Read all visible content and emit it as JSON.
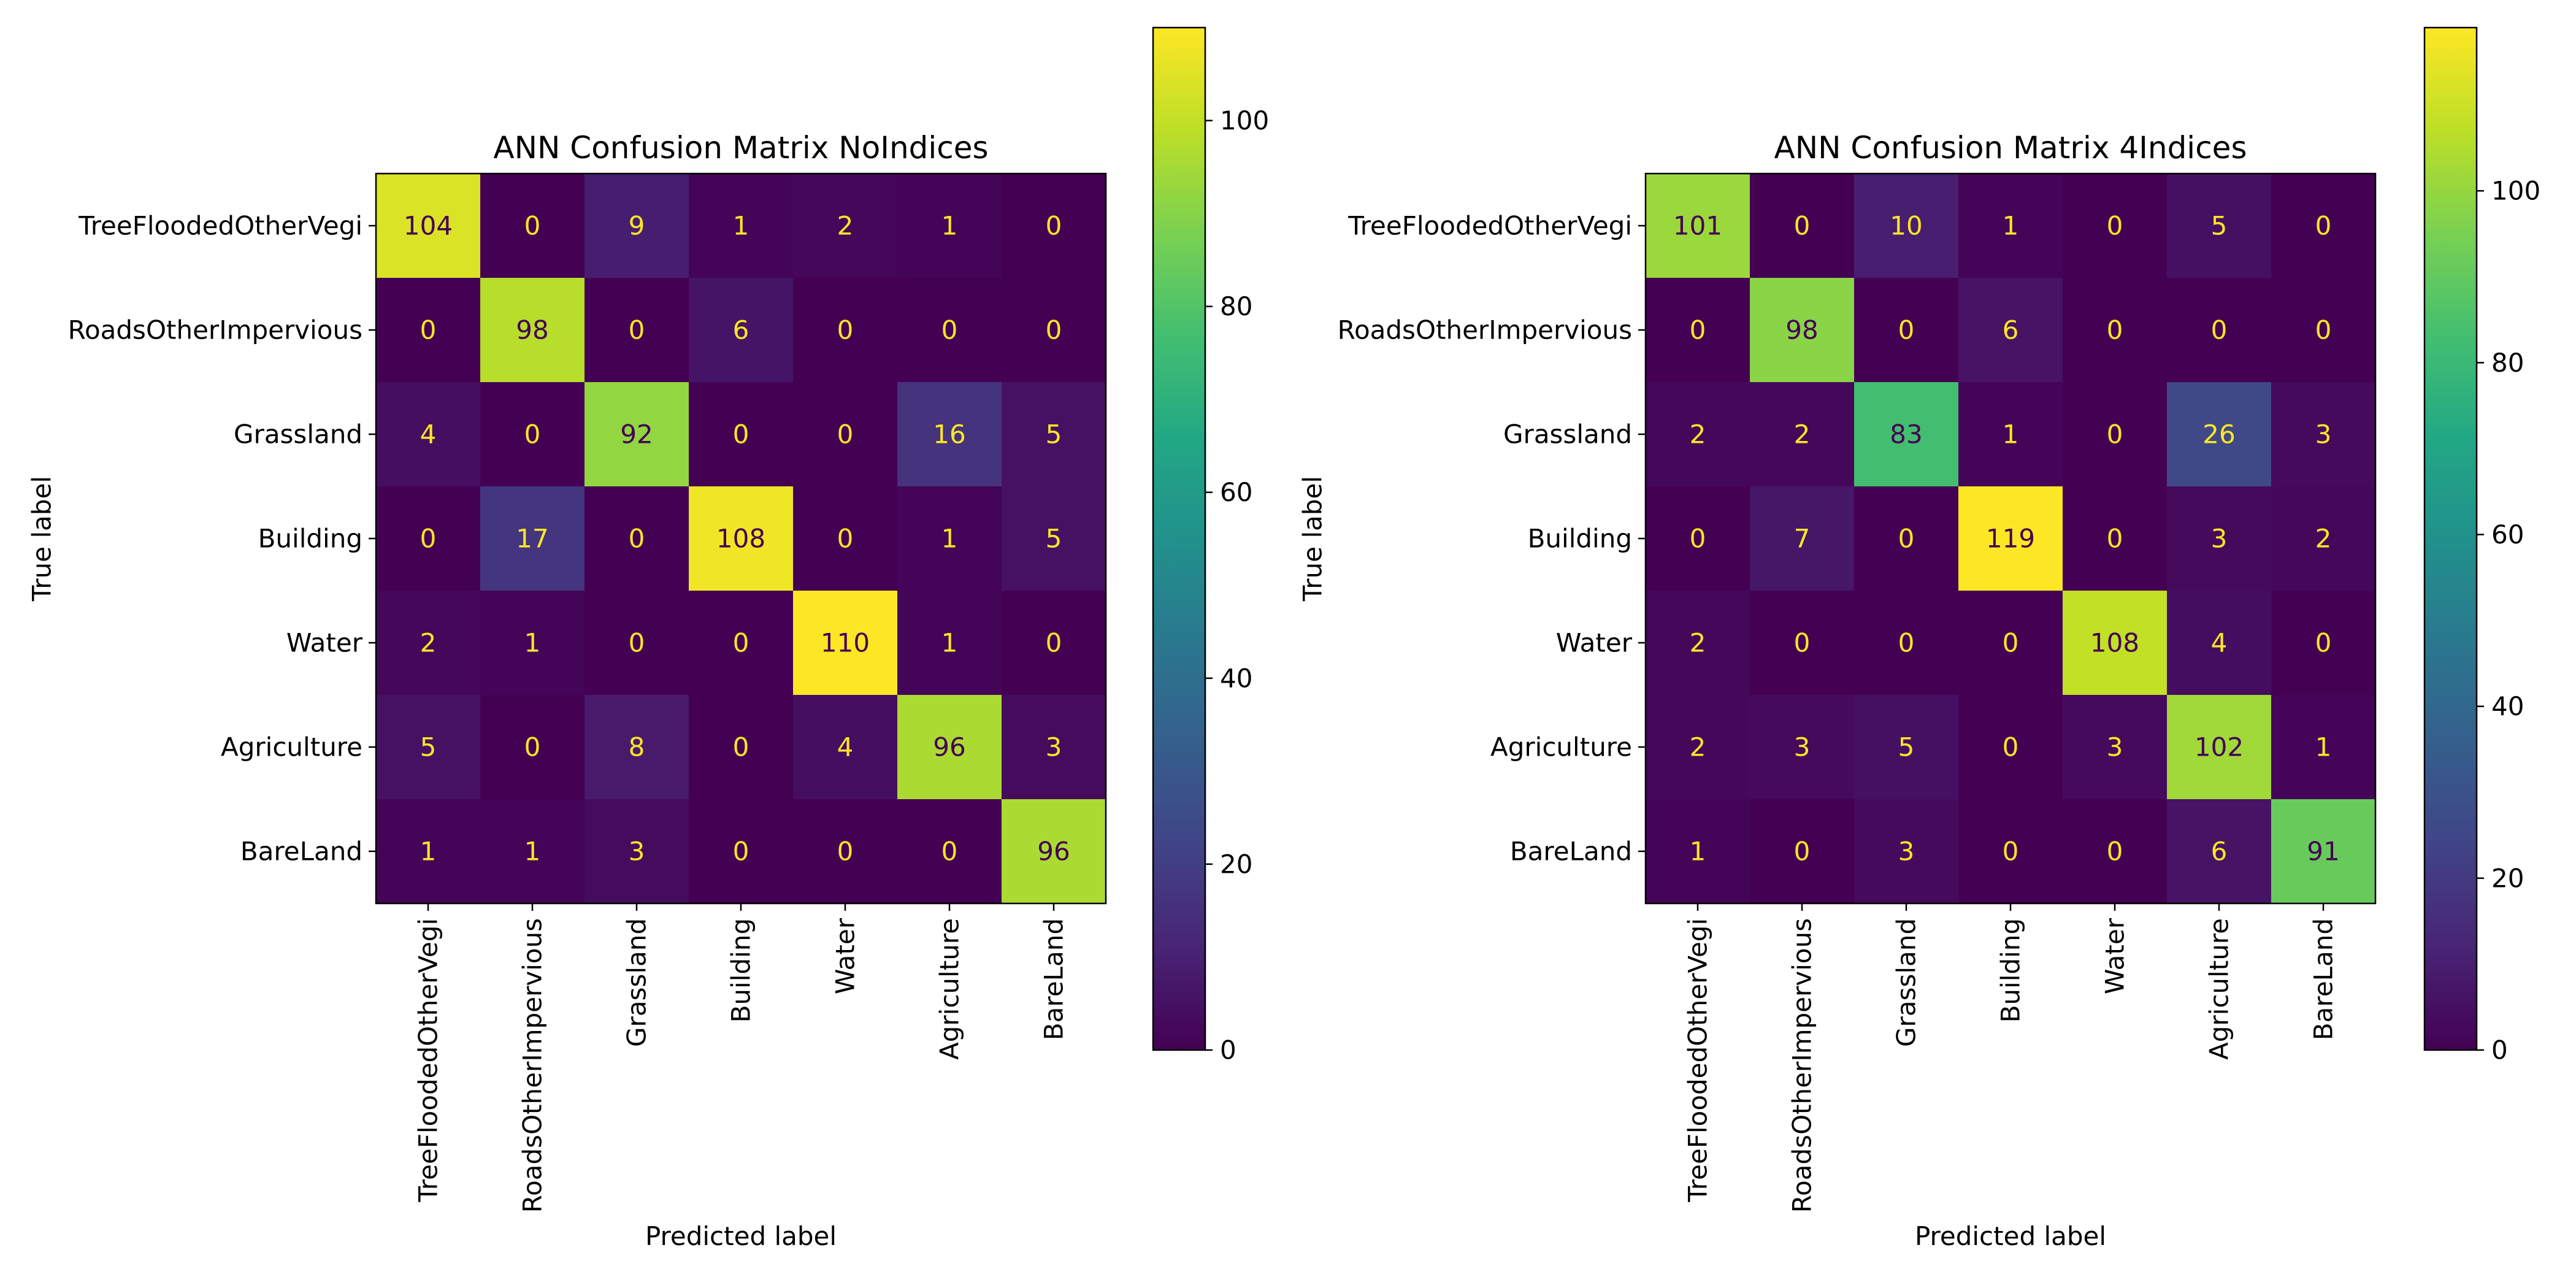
{
  "chart_data": [
    {
      "type": "heatmap",
      "title": "ANN Confusion Matrix NoIndices",
      "xlabel": "Predicted label",
      "ylabel": "True label",
      "x_categories": [
        "TreeFloodedOtherVegi",
        "RoadsOtherImpervious",
        "Grassland",
        "Building",
        "Water",
        "Agriculture",
        "BareLand"
      ],
      "y_categories": [
        "TreeFloodedOtherVegi",
        "RoadsOtherImpervious",
        "Grassland",
        "Building",
        "Water",
        "Agriculture",
        "BareLand"
      ],
      "values": [
        [
          104,
          0,
          9,
          1,
          2,
          1,
          0
        ],
        [
          0,
          98,
          0,
          6,
          0,
          0,
          0
        ],
        [
          4,
          0,
          92,
          0,
          0,
          16,
          5
        ],
        [
          0,
          17,
          0,
          108,
          0,
          1,
          5
        ],
        [
          2,
          1,
          0,
          0,
          110,
          1,
          0
        ],
        [
          5,
          0,
          8,
          0,
          4,
          96,
          3
        ],
        [
          1,
          1,
          3,
          0,
          0,
          0,
          96
        ]
      ],
      "colorbar": {
        "colormap": "viridis",
        "range": [
          0,
          110
        ],
        "ticks": [
          0,
          20,
          40,
          60,
          80,
          100
        ]
      }
    },
    {
      "type": "heatmap",
      "title": "ANN Confusion Matrix 4Indices",
      "xlabel": "Predicted label",
      "ylabel": "True label",
      "x_categories": [
        "TreeFloodedOtherVegi",
        "RoadsOtherImpervious",
        "Grassland",
        "Building",
        "Water",
        "Agriculture",
        "BareLand"
      ],
      "y_categories": [
        "TreeFloodedOtherVegi",
        "RoadsOtherImpervious",
        "Grassland",
        "Building",
        "Water",
        "Agriculture",
        "BareLand"
      ],
      "values": [
        [
          101,
          0,
          10,
          1,
          0,
          5,
          0
        ],
        [
          0,
          98,
          0,
          6,
          0,
          0,
          0
        ],
        [
          2,
          2,
          83,
          1,
          0,
          26,
          3
        ],
        [
          0,
          7,
          0,
          119,
          0,
          3,
          2
        ],
        [
          2,
          0,
          0,
          0,
          108,
          4,
          0
        ],
        [
          2,
          3,
          5,
          0,
          3,
          102,
          1
        ],
        [
          1,
          0,
          3,
          0,
          0,
          6,
          91
        ]
      ],
      "colorbar": {
        "colormap": "viridis",
        "range": [
          0,
          119
        ],
        "ticks": [
          0,
          20,
          40,
          60,
          80,
          100
        ]
      }
    }
  ]
}
